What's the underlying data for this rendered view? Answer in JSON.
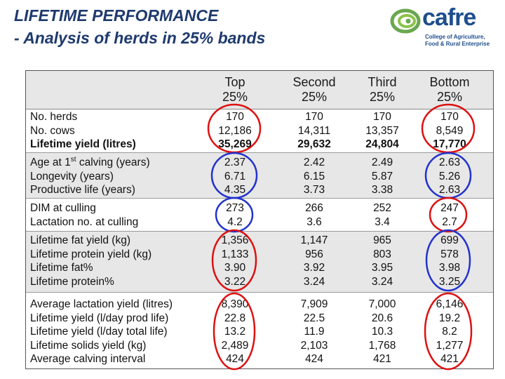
{
  "title": {
    "line1": "LIFETIME PERFORMANCE",
    "line2": " - Analysis of herds in 25% bands"
  },
  "logo": {
    "name": "cafre",
    "sub1": "College of Agriculture,",
    "sub2": "Food & Rural Enterprise"
  },
  "headers": [
    {
      "l1": "Top",
      "l2": "25%"
    },
    {
      "l1": "Second",
      "l2": "25%"
    },
    {
      "l1": "Third",
      "l2": "25%"
    },
    {
      "l1": "Bottom",
      "l2": "25%"
    }
  ],
  "groups": [
    {
      "labels": [
        "No. herds",
        "No. cows",
        "Lifetime yield (litres)"
      ],
      "values": [
        [
          "170",
          "12,186",
          "35,269"
        ],
        [
          "170",
          "14,311",
          "29,632"
        ],
        [
          "170",
          "13,357",
          "24,804"
        ],
        [
          "170",
          "8,549",
          "17,770"
        ]
      ]
    },
    {
      "label_age_prefix": "Age at 1",
      "label_age_sup": "st",
      "label_age_suffix": " calving (years)",
      "labels": [
        "Longevity (years)",
        "Productive life (years)"
      ],
      "values": [
        [
          "2.37",
          "6.71",
          "4.35"
        ],
        [
          "2.42",
          "6.15",
          "3.73"
        ],
        [
          "2.49",
          "5.87",
          "3.38"
        ],
        [
          "2.63",
          "5.26",
          "2.63"
        ]
      ]
    },
    {
      "labels": [
        "DIM at culling",
        "Lactation no. at culling"
      ],
      "values": [
        [
          "273",
          "4.2"
        ],
        [
          "266",
          "3.6"
        ],
        [
          "252",
          "3.4"
        ],
        [
          "247",
          "2.7"
        ]
      ]
    },
    {
      "labels": [
        "Lifetime fat yield (kg)",
        "Lifetime protein yield (kg)",
        "Lifetime fat%",
        "Lifetime protein%"
      ],
      "values": [
        [
          "1,356",
          "1,133",
          "3.90",
          "3.22"
        ],
        [
          "1,147",
          "956",
          "3.92",
          "3.24"
        ],
        [
          "965",
          "803",
          "3.95",
          "3.24"
        ],
        [
          "699",
          "578",
          "3.98",
          "3.25"
        ]
      ]
    },
    {
      "labels": [
        "Average lactation yield (litres)",
        "Lifetime yield (l/day prod life)",
        "Lifetime yield (l/day total life)",
        "Lifetime solids yield (kg)",
        "Average calving interval"
      ],
      "values": [
        [
          "8,390",
          "22.8",
          "13.2",
          "2,489",
          "424"
        ],
        [
          "7,909",
          "22.5",
          "11.9",
          "2,103",
          "424"
        ],
        [
          "7,000",
          "20.6",
          "10.3",
          "1,768",
          "421"
        ],
        [
          "6,146",
          "19.2",
          "8.2",
          "1,277",
          "421"
        ]
      ]
    }
  ],
  "colors": {
    "title": "#1f3a6e",
    "blue_oval": "#2233cc",
    "red_oval": "#dd1111",
    "shade": "#e7e7e7",
    "logo_blue": "#1e4e8c",
    "logo_green": "#6aa84f"
  }
}
